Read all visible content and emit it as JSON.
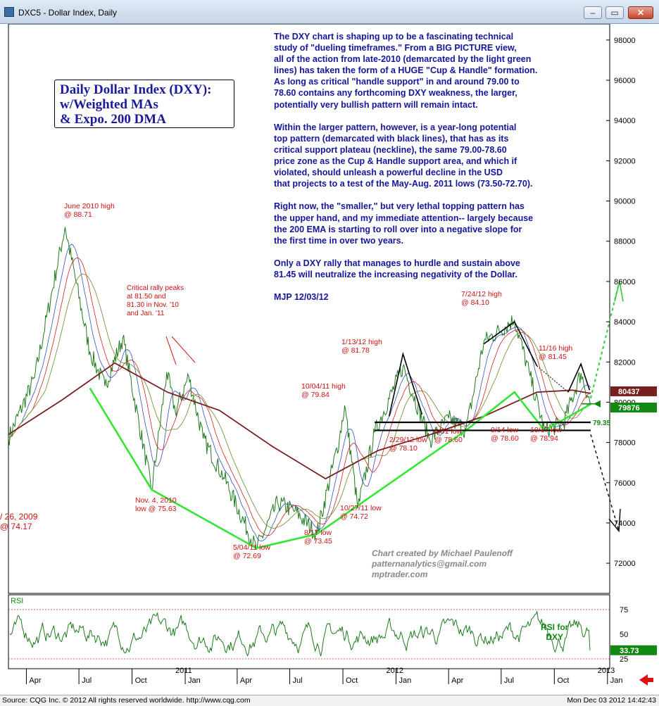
{
  "window": {
    "title": "DXC5 - Dollar Index, Daily"
  },
  "panel": {
    "legend_title": "Daily Dollar Index (DXY):\nw/Weighted MAs\n& Expo. 200 DMA",
    "commentary": "The DXY chart is shaping up to be a fascinating technical\nstudy of \"dueling timeframes.\" From a BIG PICTURE view,\nall of the action from late-2010 (demarcated by the light green\nlines) has taken the form of a HUGE \"Cup & Handle\" formation.\nAs long as critical \"handle support\" in and around 79.00 to\n78.60 contains any forthcoming DXY weakness, the larger,\npotentially very bullish pattern will remain intact.\n\nWithin the larger pattern, however, is a year-long potential\ntop pattern (demarcated with black lines), that has as its\ncritical support plateau (neckline), the same 79.00-78.60\nprice zone as the Cup & Handle support area, and which if\nviolated, should unleash a powerful decline in the USD\nthat projects to a test of the May-Aug. 2011 lows (73.50-72.70).\n\nRight now, the \"smaller,\" but very lethal topping pattern has\nthe upper hand, and my immediate attention--  largely because\nthe 200 EMA is starting to roll over into a negative slope for\nthe first time in over two years.\n\nOnly a DXY rally that manages to hurdle and sustain above\n81.45 will neutralize the increasing negativity of the Dollar.\n\nMJP 12/03/12",
    "credit": "Chart created by Michael Paulenoff\npatternanalytics@gmail.com\nmptrader.com",
    "rsi_tag": "RSI for\nDXY"
  },
  "annotations": [
    {
      "id": "june2010",
      "text": "June 2010 high\n@ 88.71"
    },
    {
      "id": "critical",
      "text": "Critical rally peaks\nat 81.50 and\n81.30 in Nov. '10\nand Jan. '11"
    },
    {
      "id": "nov2010",
      "text": "Nov. 4, 2010\nlow  @ 75.63"
    },
    {
      "id": "may2011",
      "text": "5/04/11 low\n@ 72.69"
    },
    {
      "id": "aug2011",
      "text": "8/17 low\n@ 73.45"
    },
    {
      "id": "oct2011low",
      "text": "10/27/11 low\n@ 74.72"
    },
    {
      "id": "oct2011high",
      "text": "10/04/11 high\n@ 79.84"
    },
    {
      "id": "jan2012",
      "text": "1/13/12 high\n@ 81.78"
    },
    {
      "id": "feb2012",
      "text": "2/29/12 low\n@ 78.10"
    },
    {
      "id": "may2012",
      "text": "5/01 low\n@ 78.60"
    },
    {
      "id": "jul2012",
      "text": "7/24/12 high\n@ 84.10"
    },
    {
      "id": "sep2012",
      "text": "9/14 low\n@ 78.60"
    },
    {
      "id": "oct2012",
      "text": "10/17 low\n@ 78.94"
    },
    {
      "id": "nov2012",
      "text": "11/16 high\n@ 81.45"
    },
    {
      "id": "left2009",
      "text": "/ 26, 2009\n@ 74.17"
    }
  ],
  "footer": {
    "source": "Source: CQG Inc. © 2012 All rights reserved worldwide. http://www.cqg.com",
    "datetime": "Mon Dec 03 2012 14:42:43"
  },
  "chart_data": [
    {
      "type": "line",
      "title": "DXC5 - Dollar Index, Daily",
      "ylim": [
        70500,
        98800
      ],
      "y_ticks": [
        "98000",
        "96000",
        "94000",
        "92000",
        "90000",
        "88000",
        "86000",
        "84000",
        "82000",
        "80000",
        "78000",
        "76000",
        "74000",
        "72000"
      ],
      "y_tick_values": [
        98000,
        96000,
        94000,
        92000,
        90000,
        88000,
        86000,
        84000,
        82000,
        80000,
        78000,
        76000,
        74000,
        72000
      ],
      "price_tags": [
        {
          "label": "80437",
          "value": 80437,
          "color": "#7a1f1f"
        },
        {
          "label": "79876",
          "value": 79876,
          "color": "#118811"
        }
      ],
      "x_axis_months": [
        "Apr",
        "Jul",
        "Oct",
        "Jan",
        "Apr",
        "Jul",
        "Oct",
        "Jan",
        "Apr",
        "Jul",
        "Oct",
        "Jan"
      ],
      "x_axis_years": [
        "2011",
        "2012",
        "2013"
      ],
      "x_date_range": [
        "2010-03-01",
        "2012-12-03"
      ],
      "series": [
        {
          "name": "DXC5",
          "color": "#1e7a1e",
          "x": [
            "2010-03-01",
            "2010-04-15",
            "2010-06-07",
            "2010-07-20",
            "2010-08-15",
            "2010-09-15",
            "2010-11-04",
            "2010-11-30",
            "2010-12-15",
            "2011-01-07",
            "2011-02-01",
            "2011-03-10",
            "2011-05-04",
            "2011-06-10",
            "2011-07-10",
            "2011-08-17",
            "2011-09-25",
            "2011-10-04",
            "2011-10-27",
            "2011-11-25",
            "2012-01-13",
            "2012-02-29",
            "2012-04-01",
            "2012-05-01",
            "2012-06-01",
            "2012-07-24",
            "2012-08-20",
            "2012-09-14",
            "2012-10-17",
            "2012-11-16",
            "2012-12-03"
          ],
          "y": [
            78200,
            81200,
            88710,
            82500,
            80800,
            83200,
            75630,
            81500,
            79500,
            81300,
            78200,
            76200,
            72690,
            75000,
            74600,
            73450,
            78200,
            79840,
            74720,
            78500,
            81780,
            78100,
            79200,
            78600,
            83000,
            84100,
            81300,
            78600,
            78940,
            81450,
            79876
          ]
        },
        {
          "name": "200 EMA",
          "color": "#7a1f1f",
          "x": [
            "2010-03-01",
            "2010-06-01",
            "2010-09-01",
            "2010-12-01",
            "2011-03-01",
            "2011-06-01",
            "2011-09-01",
            "2011-12-01",
            "2012-03-01",
            "2012-06-01",
            "2012-09-01",
            "2012-11-01",
            "2012-12-03"
          ],
          "y": [
            78400,
            80100,
            81950,
            80500,
            79600,
            77800,
            76200,
            77600,
            78400,
            79300,
            80500,
            80600,
            80437
          ]
        }
      ],
      "pattern_lines": {
        "cup_and_handle_green": [
          [
            "2010-07-20",
            80700
          ],
          [
            "2010-11-04",
            75650
          ],
          [
            "2011-05-04",
            72750
          ],
          [
            "2011-08-17",
            73450
          ],
          [
            "2012-05-01",
            78600
          ],
          [
            "2012-07-24",
            80500
          ],
          [
            "2012-09-14",
            78600
          ],
          [
            "2012-12-03",
            79900
          ]
        ],
        "neckline_black": [
          79000,
          78600
        ],
        "neckline_level_label": "79.35"
      }
    },
    {
      "type": "line",
      "title": "RSI",
      "ylim": [
        15,
        90
      ],
      "y_ticks": [
        "75",
        "50",
        "25"
      ],
      "y_tick_values": [
        75,
        50,
        25
      ],
      "current_value_label": "33.73",
      "current_value": 33.73,
      "reference_levels": [
        75,
        25
      ]
    }
  ]
}
